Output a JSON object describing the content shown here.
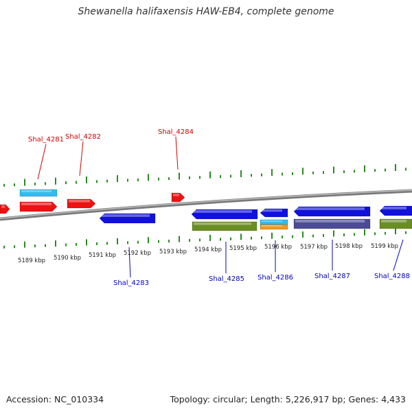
{
  "title": "Shewanella halifaxensis HAW-EB4, complete genome",
  "footer": {
    "accession": "Accession: NC_010334",
    "summary": "Topology: circular; Length: 5,226,917 bp; Genes: 4,433"
  },
  "colors": {
    "backbone": "#8c8c8c",
    "tick": "#2a8a1f",
    "forward_label": "#cc0000",
    "reverse_label": "#0000bb",
    "red_gene": "#ee1111",
    "blue_gene": "#1111dd",
    "cyan_gene": "#33bbee",
    "olive_gene": "#6b8e23",
    "slate_gene": "#4b4b96",
    "orange_gene": "#ee9922"
  },
  "scale_labels": [
    "5189 kbp",
    "5190 kbp",
    "5191 kbp",
    "5192 kbp",
    "5193 kbp",
    "5194 kbp",
    "5195 kbp",
    "5196 kbp",
    "5197 kbp",
    "5198 kbp",
    "5199 kbp"
  ],
  "forward_genes": [
    "Shal_4281",
    "Shal_4282",
    "Shal_4284"
  ],
  "reverse_genes": [
    "Shal_4283",
    "Shal_4285",
    "Shal_4286",
    "Shal_4287",
    "Shal_4288"
  ]
}
